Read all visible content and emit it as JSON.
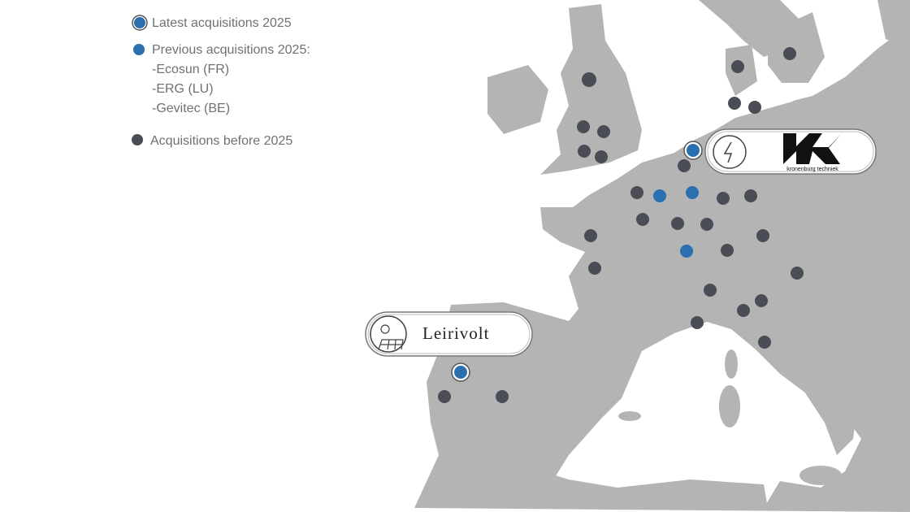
{
  "legend": {
    "items": [
      {
        "label": "Latest acquisitions 2025"
      },
      {
        "label": "Previous acquisitions 2025:",
        "details": [
          "-Ecosun (FR)",
          "-ERG (LU)",
          "-Gevitec (BE)"
        ]
      },
      {
        "label": "Acquisitions before 2025"
      }
    ]
  },
  "callouts": [
    {
      "name": "Leirivolt"
    },
    {
      "name": "kronenburg techniek"
    }
  ]
}
